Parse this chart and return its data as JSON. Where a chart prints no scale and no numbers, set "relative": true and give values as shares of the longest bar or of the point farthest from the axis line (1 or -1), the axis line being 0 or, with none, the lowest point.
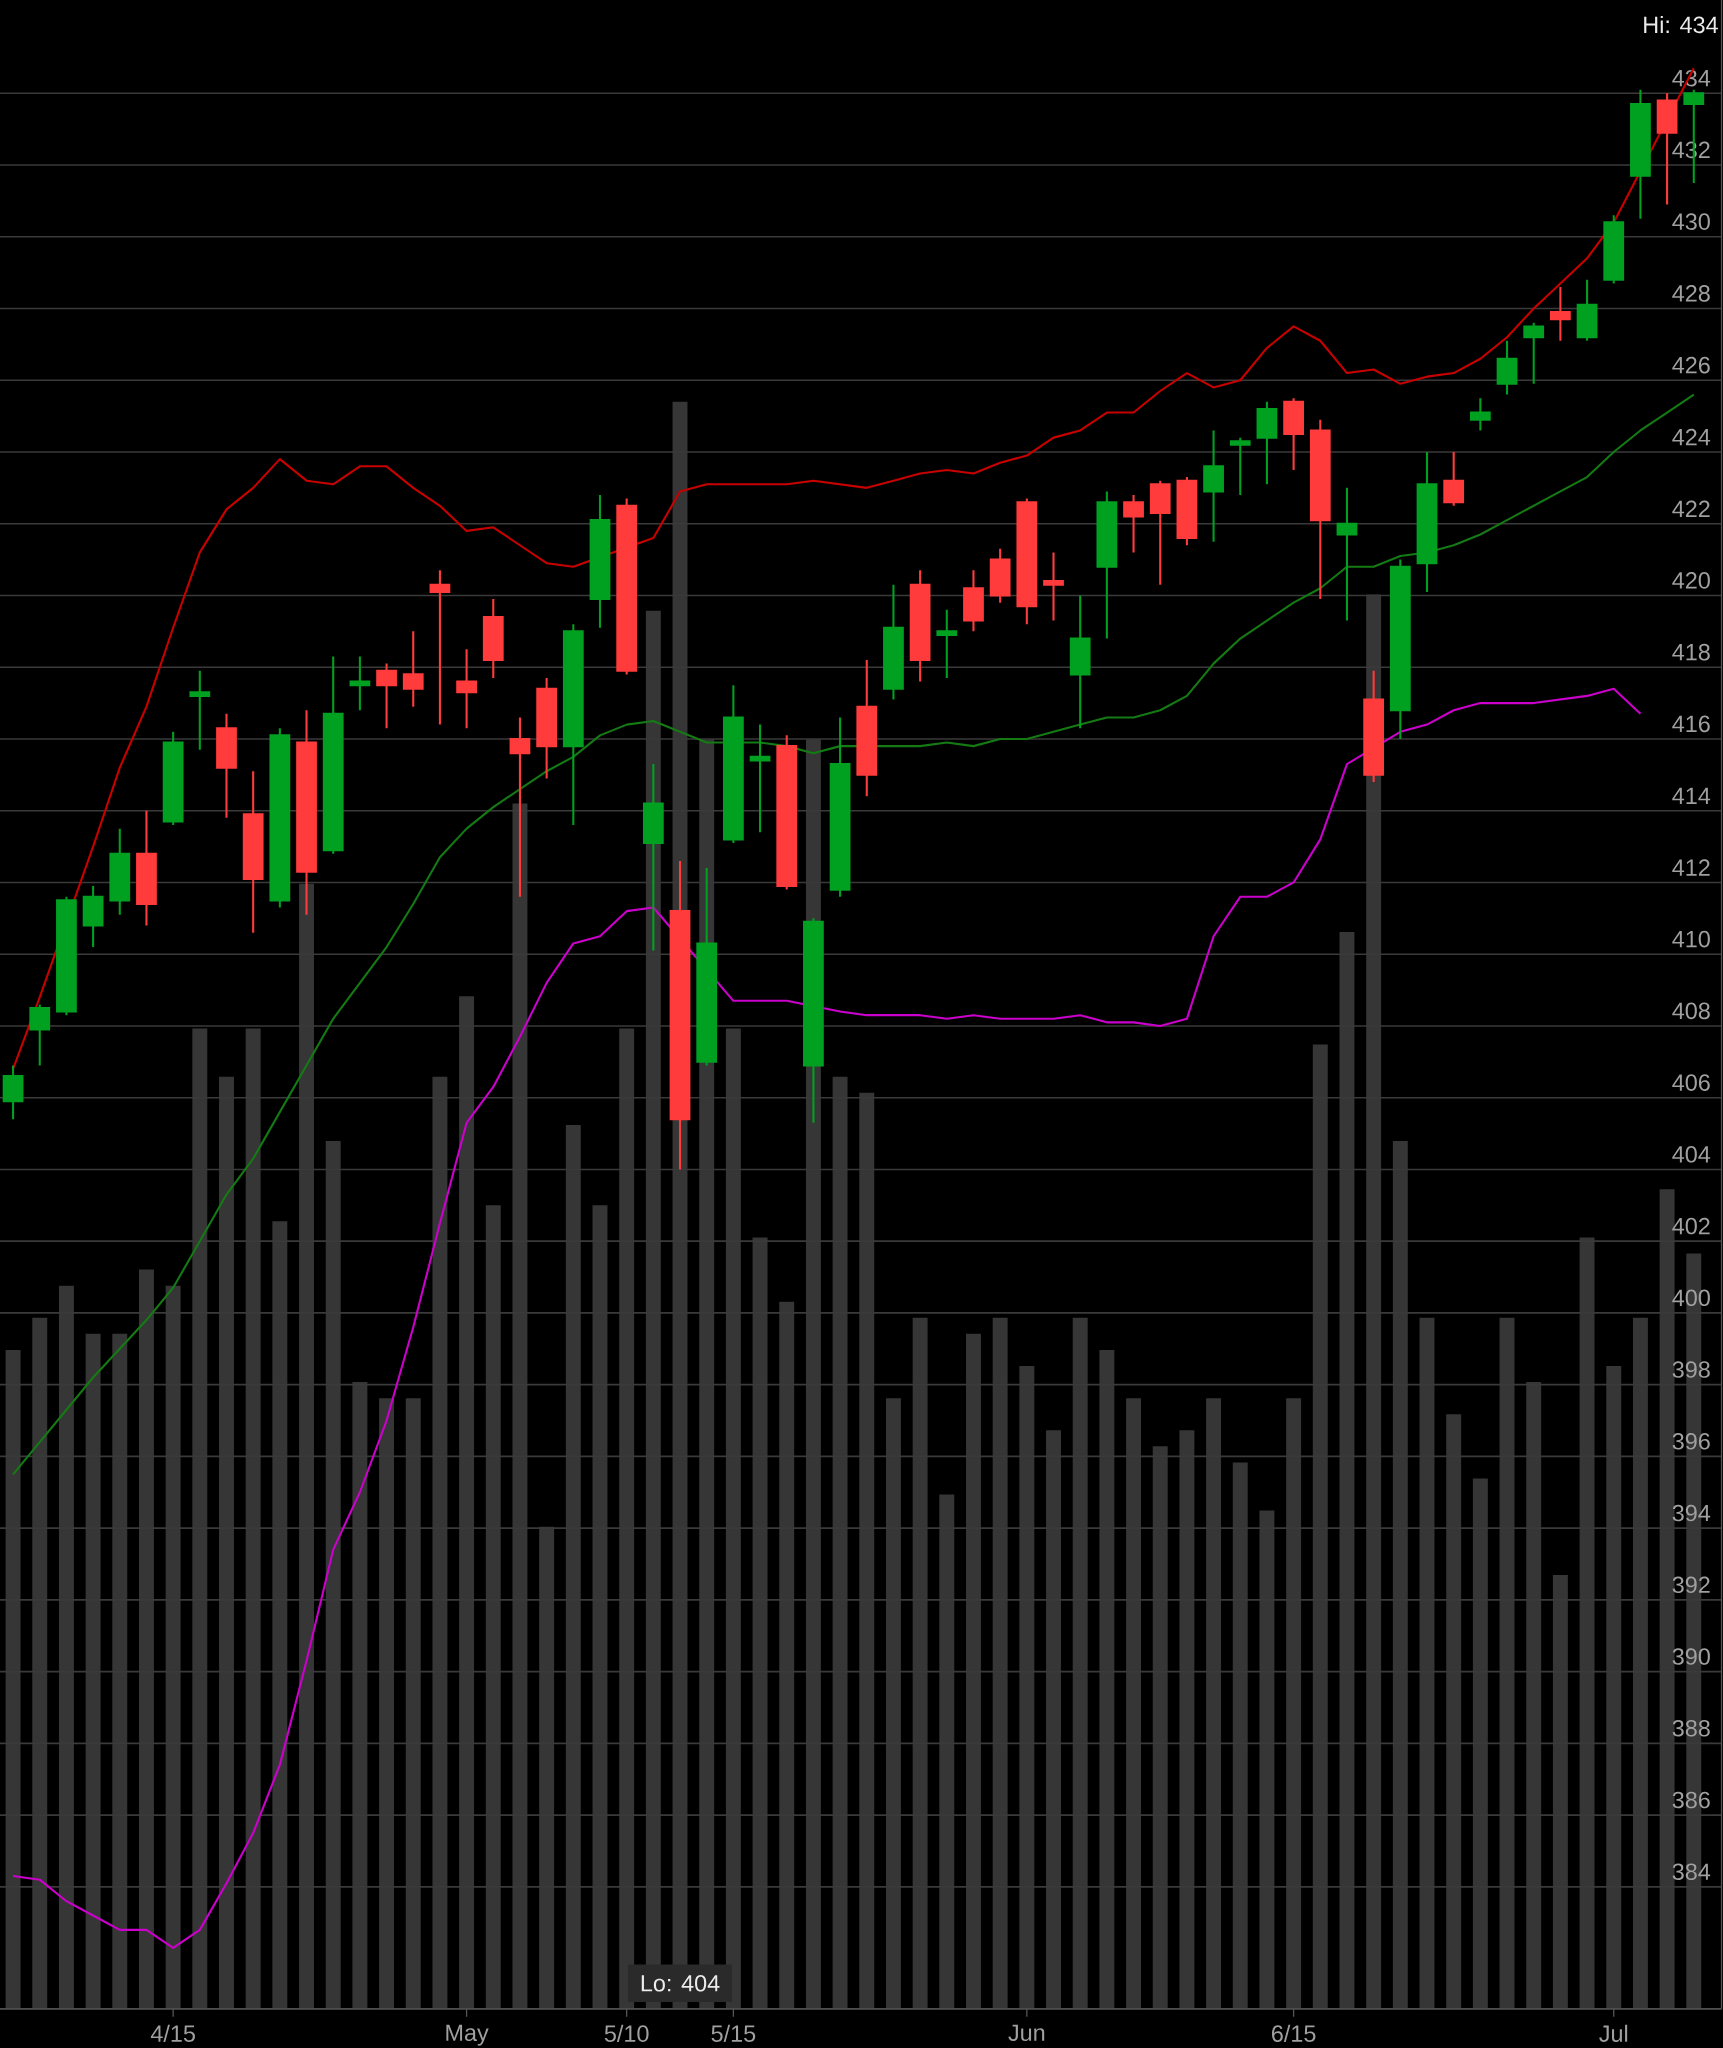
{
  "chart_data": [
    {
      "type": "bar",
      "relative": true,
      "tick_labels": false,
      "color": "#363636",
      "categories": [
        null,
        null,
        null,
        null,
        null,
        null,
        null,
        null,
        null,
        null,
        null,
        null,
        null,
        null,
        null,
        null,
        null,
        null,
        null,
        null,
        null,
        null,
        null,
        null,
        null,
        null,
        null,
        null,
        null,
        null,
        null,
        null,
        null,
        null,
        null,
        null,
        null,
        null,
        null,
        null,
        null,
        null,
        null,
        null,
        null,
        null,
        null,
        null,
        null,
        null,
        null,
        null,
        null,
        null,
        null,
        null,
        null,
        null,
        null,
        null,
        null,
        null,
        null,
        null
      ],
      "values": [
        0.41,
        0.43,
        0.45,
        0.42,
        0.42,
        0.46,
        0.45,
        0.61,
        0.58,
        0.61,
        0.49,
        0.7,
        0.54,
        0.39,
        0.38,
        0.38,
        0.58,
        0.63,
        0.5,
        0.75,
        0.3,
        0.55,
        0.5,
        0.61,
        0.87,
        1,
        0.79,
        0.61,
        0.48,
        0.44,
        0.79,
        0.58,
        0.57,
        0.38,
        0.43,
        0.32,
        0.42,
        0.43,
        0.4,
        0.36,
        0.43,
        0.41,
        0.38,
        0.35,
        0.36,
        0.38,
        0.34,
        0.31,
        0.38,
        0.6,
        0.67,
        0.88,
        0.54,
        0.43,
        0.37,
        0.33,
        0.43,
        0.39,
        0.27,
        0.48,
        0.4,
        0.43,
        0.51,
        0.47
      ]
    },
    {
      "type": "candlestick",
      "categories": [
        null,
        null,
        null,
        null,
        null,
        null,
        "4/15",
        null,
        null,
        null,
        null,
        null,
        null,
        null,
        null,
        null,
        null,
        "May",
        null,
        null,
        null,
        null,
        null,
        "5/10",
        null,
        null,
        null,
        "5/15",
        null,
        null,
        null,
        null,
        null,
        null,
        null,
        null,
        null,
        null,
        "Jun",
        null,
        null,
        null,
        null,
        null,
        null,
        null,
        null,
        null,
        "6/15",
        null,
        null,
        null,
        null,
        null,
        null,
        null,
        null,
        null,
        null,
        null,
        "Jul",
        null,
        null,
        null
      ],
      "ohlc": [
        [
          405.9,
          406.9,
          405.4,
          406.6
        ],
        [
          407.9,
          408.6,
          406.9,
          408.5
        ],
        [
          408.4,
          411.6,
          408.3,
          411.5
        ],
        [
          410.8,
          411.9,
          410.2,
          411.6
        ],
        [
          411.5,
          413.5,
          411.1,
          412.8
        ],
        [
          412.8,
          414.0,
          410.8,
          411.4
        ],
        [
          413.7,
          416.2,
          413.6,
          415.9
        ],
        [
          417.2,
          417.9,
          415.7,
          417.3
        ],
        [
          416.3,
          416.7,
          413.8,
          415.2
        ],
        [
          413.9,
          415.1,
          410.6,
          412.1
        ],
        [
          411.5,
          416.3,
          411.3,
          416.1
        ],
        [
          415.9,
          416.8,
          411.1,
          412.3
        ],
        [
          412.9,
          418.3,
          412.8,
          416.7
        ],
        [
          417.5,
          418.3,
          416.8,
          417.6
        ],
        [
          417.9,
          418.1,
          416.3,
          417.5
        ],
        [
          417.8,
          419.0,
          416.9,
          417.4
        ],
        [
          420.3,
          420.7,
          416.4,
          420.1
        ],
        [
          417.6,
          418.5,
          416.3,
          417.3
        ],
        [
          419.4,
          419.9,
          417.7,
          418.2
        ],
        [
          416.0,
          416.6,
          411.6,
          415.6
        ],
        [
          417.4,
          417.7,
          414.9,
          415.8
        ],
        [
          415.8,
          419.2,
          413.6,
          419.0
        ],
        [
          419.9,
          422.8,
          419.1,
          422.1
        ],
        [
          422.5,
          422.7,
          417.8,
          417.9
        ],
        [
          413.1,
          415.3,
          410.1,
          414.2
        ],
        [
          411.2,
          412.6,
          404.0,
          405.4
        ],
        [
          407.0,
          412.4,
          406.9,
          410.3
        ],
        [
          413.2,
          417.5,
          413.1,
          416.6
        ],
        [
          415.4,
          416.4,
          413.4,
          415.5
        ],
        [
          415.8,
          416.1,
          411.8,
          411.9
        ],
        [
          406.9,
          411.0,
          405.3,
          410.9
        ],
        [
          411.8,
          416.6,
          411.6,
          415.3
        ],
        [
          416.9,
          418.2,
          414.4,
          415.0
        ],
        [
          417.4,
          420.3,
          417.1,
          419.1
        ],
        [
          420.3,
          420.7,
          417.6,
          418.2
        ],
        [
          418.9,
          419.6,
          417.7,
          419.0
        ],
        [
          420.2,
          420.7,
          419.0,
          419.3
        ],
        [
          421.0,
          421.3,
          419.8,
          420.0
        ],
        [
          422.6,
          422.7,
          419.2,
          419.7
        ],
        [
          420.4,
          421.2,
          419.3,
          420.3
        ],
        [
          417.8,
          420.0,
          416.3,
          418.8
        ],
        [
          420.8,
          422.9,
          418.8,
          422.6
        ],
        [
          422.6,
          422.8,
          421.2,
          422.2
        ],
        [
          423.1,
          423.2,
          420.3,
          422.3
        ],
        [
          423.2,
          423.3,
          421.4,
          421.6
        ],
        [
          422.9,
          424.6,
          421.5,
          423.6
        ],
        [
          424.2,
          424.4,
          422.8,
          424.3
        ],
        [
          424.4,
          425.4,
          423.1,
          425.2
        ],
        [
          425.4,
          425.5,
          423.5,
          424.5
        ],
        [
          424.6,
          424.9,
          419.9,
          422.1
        ],
        [
          421.7,
          423.0,
          419.3,
          422.0
        ],
        [
          417.1,
          417.9,
          414.8,
          415.0
        ],
        [
          416.8,
          421.0,
          416.0,
          420.8
        ],
        [
          420.9,
          424.0,
          420.1,
          423.1
        ],
        [
          423.2,
          424.0,
          422.5,
          422.6
        ],
        [
          424.9,
          425.5,
          424.6,
          425.1
        ],
        [
          425.9,
          427.1,
          425.6,
          426.6
        ],
        [
          427.2,
          427.6,
          425.9,
          427.5
        ],
        [
          427.9,
          428.6,
          427.1,
          427.7
        ],
        [
          427.2,
          428.8,
          427.1,
          428.1
        ],
        [
          428.8,
          430.6,
          428.7,
          430.4
        ],
        [
          431.7,
          434.1,
          430.5,
          433.7
        ],
        [
          433.8,
          434.0,
          430.9,
          432.9
        ],
        [
          433.7,
          434.1,
          431.5,
          434.0
        ]
      ],
      "colors": [
        "#00a020",
        "#00a020",
        "#00a020",
        "#00a020",
        "#00a020",
        "#ff3b3b",
        "#00a020",
        "#00a020",
        "#ff3b3b",
        "#ff3b3b",
        "#00a020",
        "#ff3b3b",
        "#00a020",
        "#00a020",
        "#ff3b3b",
        "#ff3b3b",
        "#ff3b3b",
        "#ff3b3b",
        "#ff3b3b",
        "#ff3b3b",
        "#ff3b3b",
        "#00a020",
        "#00a020",
        "#ff3b3b",
        "#00a020",
        "#ff3b3b",
        "#00a020",
        "#00a020",
        "#00a020",
        "#ff3b3b",
        "#00a020",
        "#00a020",
        "#ff3b3b",
        "#00a020",
        "#ff3b3b",
        "#00a020",
        "#ff3b3b",
        "#ff3b3b",
        "#ff3b3b",
        "#ff3b3b",
        "#00a020",
        "#00a020",
        "#ff3b3b",
        "#ff3b3b",
        "#ff3b3b",
        "#00a020",
        "#00a020",
        "#00a020",
        "#ff3b3b",
        "#ff3b3b",
        "#00a020",
        "#ff3b3b",
        "#00a020",
        "#00a020",
        "#ff3b3b",
        "#00a020",
        "#00a020",
        "#00a020",
        "#ff3b3b",
        "#00a020",
        "#00a020",
        "#00a020",
        "#ff3b3b",
        "#00a020"
      ],
      "series": [
        {
          "type": "line",
          "color": "#c80000",
          "values": [
            406.8,
            408.8,
            null,
            413.0,
            415.2,
            416.9,
            419.1,
            421.2,
            422.4,
            423.0,
            423.8,
            423.2,
            423.1,
            423.6,
            423.6,
            423.0,
            422.5,
            421.8,
            421.9,
            421.4,
            420.9,
            420.8,
            null,
            null,
            421.6,
            422.9,
            423.1,
            423.1,
            423.1,
            423.1,
            423.2,
            423.1,
            423.0,
            423.2,
            423.4,
            423.5,
            423.4,
            423.7,
            423.9,
            424.4,
            424.6,
            425.1,
            425.1,
            425.7,
            426.2,
            425.8,
            426.0,
            426.9,
            427.5,
            427.1,
            426.2,
            426.3,
            425.9,
            426.1,
            426.2,
            426.6,
            427.2,
            428.0,
            428.7,
            429.4,
            430.4,
            null,
            null,
            434.7
          ]
        },
        {
          "type": "line",
          "color": "#147a14",
          "values": [
            395.5,
            396.4,
            397.3,
            398.2,
            399.0,
            399.8,
            400.7,
            402.0,
            403.3,
            404.3,
            405.6,
            406.9,
            408.2,
            409.2,
            410.2,
            411.4,
            412.7,
            413.5,
            414.1,
            414.6,
            415.1,
            415.5,
            416.1,
            416.4,
            416.5,
            416.2,
            415.9,
            415.9,
            415.9,
            415.8,
            415.6,
            415.8,
            null,
            415.8,
            415.8,
            415.9,
            415.8,
            416.0,
            416.0,
            416.2,
            416.4,
            416.6,
            416.6,
            416.8,
            417.2,
            418.1,
            418.8,
            419.3,
            419.8,
            420.2,
            420.8,
            420.8,
            421.1,
            421.2,
            421.4,
            421.7,
            422.1,
            422.5,
            422.9,
            423.3,
            424.0,
            424.6,
            425.1,
            425.6
          ]
        },
        {
          "type": "line",
          "color": "#cc00cc",
          "values": [
            384.3,
            384.2,
            383.6,
            383.2,
            382.8,
            382.8,
            382.3,
            382.8,
            384.1,
            385.5,
            387.4,
            390.3,
            393.4,
            395.0,
            397.0,
            399.6,
            402.5,
            405.3,
            406.3,
            407.7,
            409.2,
            410.3,
            410.5,
            411.2,
            411.3,
            null,
            null,
            408.7,
            408.7,
            408.7,
            null,
            408.4,
            408.3,
            408.3,
            408.3,
            408.2,
            408.3,
            408.2,
            408.2,
            408.2,
            408.3,
            408.1,
            408.1,
            408.0,
            408.2,
            410.5,
            411.6,
            411.6,
            412.0,
            413.2,
            415.3,
            null,
            416.2,
            416.4,
            416.8,
            417.0,
            417.0,
            417.0,
            417.1,
            417.2,
            417.4,
            416.7,
            null,
            null
          ]
        }
      ],
      "ylim": [
        380.6,
        436.6
      ],
      "yticks": [
        384,
        386,
        388,
        390,
        392,
        394,
        396,
        398,
        400,
        402,
        404,
        406,
        408,
        410,
        412,
        414,
        416,
        418,
        420,
        422,
        424,
        426,
        428,
        430,
        432,
        434
      ],
      "grid": "y",
      "annotations": [
        "Hi: 434",
        "Lo: 404"
      ]
    }
  ]
}
